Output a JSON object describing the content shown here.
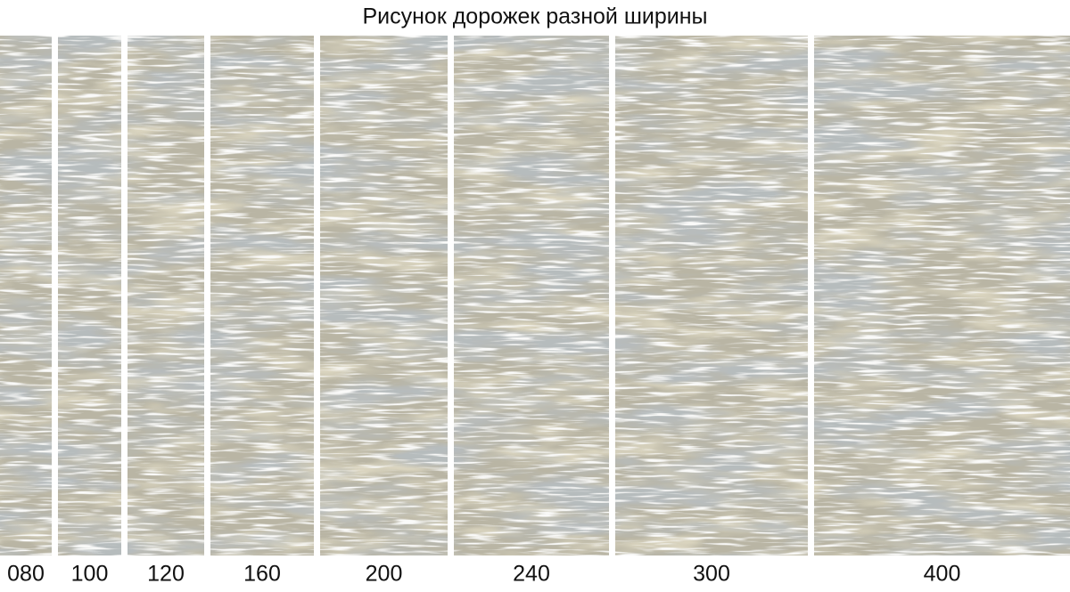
{
  "title": "Рисунок дорожек разной ширины",
  "runners": [
    {
      "label": "080"
    },
    {
      "label": "100"
    },
    {
      "label": "120"
    },
    {
      "label": "160"
    },
    {
      "label": "200"
    },
    {
      "label": "240"
    },
    {
      "label": "300"
    },
    {
      "label": "400"
    }
  ]
}
